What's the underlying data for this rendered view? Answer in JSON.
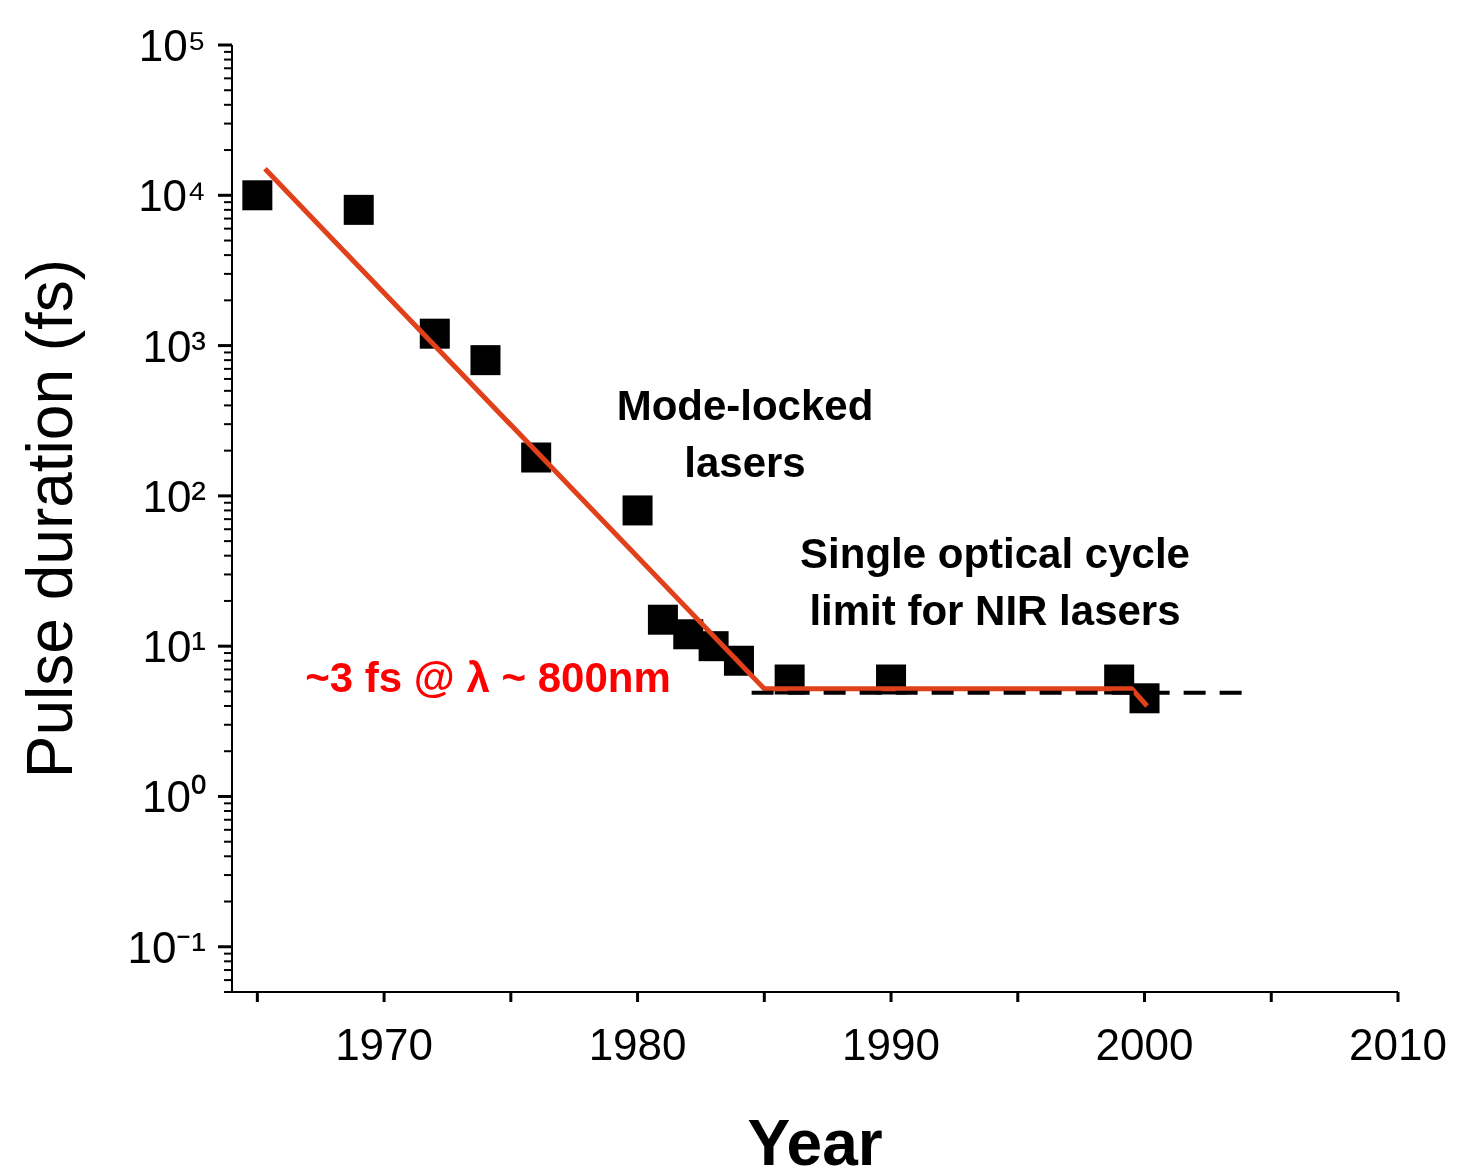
{
  "chart_data": {
    "type": "scatter",
    "xlabel": "Year",
    "ylabel": "Pulse duration (fs)",
    "log": "y",
    "grid": false,
    "xlim": [
      1964,
      2010
    ],
    "xticks": [
      {
        "value": 1965,
        "label": null
      },
      1970,
      {
        "value": 1975,
        "label": null
      },
      1980,
      {
        "value": 1985,
        "label": null
      },
      1990,
      {
        "value": 1995,
        "label": null
      },
      2000,
      {
        "value": 2005,
        "label": null
      },
      2010
    ],
    "ylim": [
      0.05,
      100000
    ],
    "yticks": [
      {
        "value": 0.05,
        "label": null
      },
      {
        "value": 0.06,
        "label": null
      },
      {
        "value": 0.07,
        "label": null
      },
      {
        "value": 0.08,
        "label": null
      },
      {
        "value": 0.09,
        "label": null
      },
      {
        "value": 0.1,
        "label": "10⁻¹"
      },
      {
        "value": 0.2,
        "label": null
      },
      {
        "value": 0.3,
        "label": null
      },
      {
        "value": 0.4,
        "label": null
      },
      {
        "value": 0.5,
        "label": null
      },
      {
        "value": 0.6,
        "label": null
      },
      {
        "value": 0.7,
        "label": null
      },
      {
        "value": 0.8,
        "label": null
      },
      {
        "value": 0.9,
        "label": null
      },
      {
        "value": 1,
        "label": "10⁰"
      },
      {
        "value": 2,
        "label": null
      },
      {
        "value": 3,
        "label": null
      },
      {
        "value": 4,
        "label": null
      },
      {
        "value": 5,
        "label": null
      },
      {
        "value": 6,
        "label": null
      },
      {
        "value": 7,
        "label": null
      },
      {
        "value": 8,
        "label": null
      },
      {
        "value": 9,
        "label": null
      },
      {
        "value": 10,
        "label": "10¹"
      },
      {
        "value": 20,
        "label": null
      },
      {
        "value": 30,
        "label": null
      },
      {
        "value": 40,
        "label": null
      },
      {
        "value": 50,
        "label": null
      },
      {
        "value": 60,
        "label": null
      },
      {
        "value": 70,
        "label": null
      },
      {
        "value": 80,
        "label": null
      },
      {
        "value": 90,
        "label": null
      },
      {
        "value": 100,
        "label": "10²"
      },
      {
        "value": 200,
        "label": null
      },
      {
        "value": 300,
        "label": null
      },
      {
        "value": 400,
        "label": null
      },
      {
        "value": 500,
        "label": null
      },
      {
        "value": 600,
        "label": null
      },
      {
        "value": 700,
        "label": null
      },
      {
        "value": 800,
        "label": null
      },
      {
        "value": 900,
        "label": null
      },
      {
        "value": 1000,
        "label": "10³"
      },
      {
        "value": 2000,
        "label": null
      },
      {
        "value": 3000,
        "label": null
      },
      {
        "value": 4000,
        "label": null
      },
      {
        "value": 5000,
        "label": null
      },
      {
        "value": 6000,
        "label": null
      },
      {
        "value": 7000,
        "label": null
      },
      {
        "value": 8000,
        "label": null
      },
      {
        "value": 9000,
        "label": null
      },
      {
        "value": 10000,
        "label": "10⁴"
      },
      {
        "value": 20000,
        "label": null
      },
      {
        "value": 30000,
        "label": null
      },
      {
        "value": 40000,
        "label": null
      },
      {
        "value": 50000,
        "label": null
      },
      {
        "value": 60000,
        "label": null
      },
      {
        "value": 70000,
        "label": null
      },
      {
        "value": 80000,
        "label": null
      },
      {
        "value": 90000,
        "label": null
      },
      {
        "value": 100000,
        "label": "10⁵"
      }
    ],
    "series": [
      {
        "color": "#000000",
        "marker": "square",
        "x": [
          1965,
          1969,
          1972,
          1974,
          1976,
          1980,
          1981,
          1982,
          1983,
          1984,
          1986,
          1990,
          1999,
          2000
        ],
        "values": [
          10000,
          8000,
          1200,
          800,
          180,
          80,
          15,
          12,
          10,
          8,
          6,
          6,
          6,
          4.5
        ]
      },
      {
        "type": "line",
        "color": "#e0401a",
        "line_style": "solid",
        "x": [
          1965.3,
          1985,
          1999.5,
          2000.1
        ],
        "values": [
          15000,
          5.2,
          5.2,
          4
        ]
      },
      {
        "type": "line",
        "color": "#000000",
        "line_style": "dashed",
        "x": [
          1984.5,
          2004
        ],
        "values": [
          4.9,
          4.9
        ]
      }
    ],
    "annotations": [
      "Mode-locked lasers",
      "Single optical cycle limit for NIR lasers",
      "~3 fs @ λ ~ 800nm"
    ]
  }
}
